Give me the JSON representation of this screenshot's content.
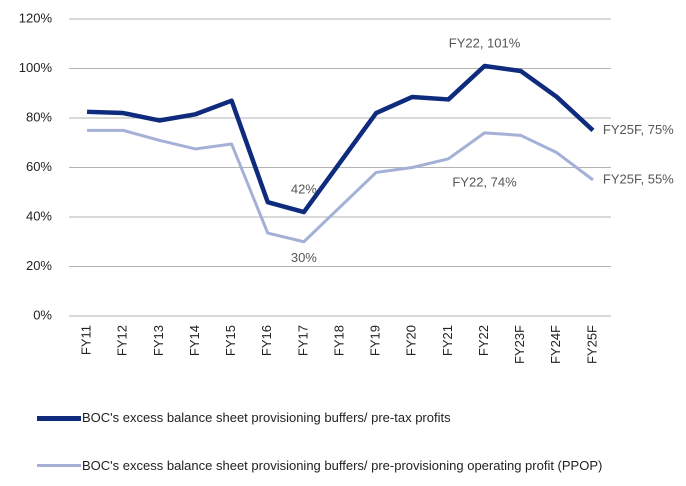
{
  "chart_data": {
    "type": "line",
    "categories": [
      "FY11",
      "FY12",
      "FY13",
      "FY14",
      "FY15",
      "FY16",
      "FY17",
      "FY18",
      "FY19",
      "FY20",
      "FY21",
      "FY22",
      "FY23F",
      "FY24F",
      "FY25F"
    ],
    "series": [
      {
        "name": "BOC's excess balance sheet provisioning buffers/ pre-tax profits",
        "color": "#0e2b7d",
        "values": [
          82.5,
          82,
          79,
          81.5,
          87,
          46,
          42,
          62,
          82,
          88.5,
          87.5,
          101,
          99,
          88.5,
          75
        ],
        "value_labels": [
          null,
          null,
          null,
          null,
          null,
          null,
          "42%",
          null,
          null,
          null,
          null,
          "FY22, 101%",
          null,
          null,
          "FY25F, 75%"
        ]
      },
      {
        "name": "BOC's excess balance sheet provisioning buffers/ pre-provisioning operating profit (PPOP)",
        "color": "#a5b0d6",
        "values": [
          75,
          75,
          71,
          67.5,
          69.5,
          33.5,
          30,
          44,
          58,
          60,
          63.5,
          74,
          73,
          66,
          55
        ],
        "value_labels": [
          null,
          null,
          null,
          null,
          null,
          null,
          "30%",
          null,
          null,
          null,
          null,
          "FY22, 74%",
          null,
          null,
          "FY25F, 55%"
        ]
      }
    ],
    "ylim": [
      0,
      120
    ],
    "yticks": [
      {
        "value": 0,
        "label": "0%"
      },
      {
        "value": 20,
        "label": "20%"
      },
      {
        "value": 40,
        "label": "40%"
      },
      {
        "value": 60,
        "label": "60%"
      },
      {
        "value": 80,
        "label": "80%"
      },
      {
        "value": 100,
        "label": "100%"
      },
      {
        "value": 120,
        "label": "120%"
      }
    ],
    "grid": true,
    "legend": "bottom"
  }
}
